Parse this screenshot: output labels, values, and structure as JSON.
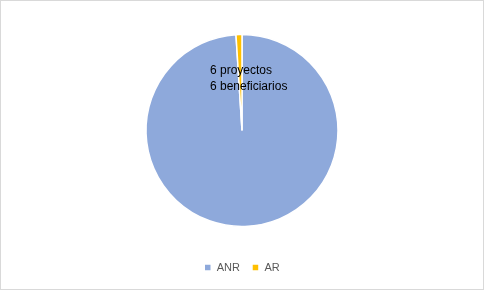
{
  "chart_data": {
    "type": "pie",
    "categories": [
      "ANR",
      "AR"
    ],
    "values": [
      99,
      1
    ],
    "colors": [
      "#8EA9DB",
      "#FFC000"
    ],
    "legend": "bottom",
    "annotation": [
      "6 proyectos",
      "6 beneficiarios"
    ]
  }
}
